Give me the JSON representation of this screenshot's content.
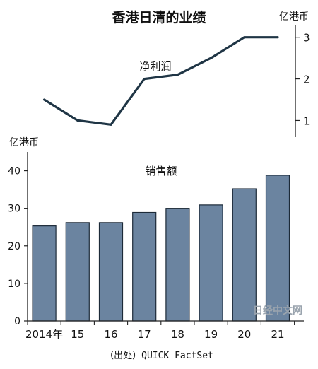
{
  "chart_data": [
    {
      "type": "line",
      "title": "香港日清的业绩",
      "series_label": "净利润",
      "unit": "亿港币",
      "x": [
        "2014年",
        "15",
        "16",
        "17",
        "18",
        "19",
        "20",
        "21"
      ],
      "values": [
        1.5,
        1.0,
        0.9,
        2.0,
        2.1,
        2.5,
        3.0,
        3.0
      ],
      "yticks": [
        1,
        2,
        3
      ],
      "ylim": [
        0.6,
        3.3
      ],
      "axis_side": "right",
      "color": "#1f3545"
    },
    {
      "type": "bar",
      "title": "销售额",
      "unit": "亿港币",
      "categories": [
        "2014年",
        "15",
        "16",
        "17",
        "18",
        "19",
        "20",
        "21"
      ],
      "values": [
        25.3,
        26.2,
        26.2,
        28.9,
        30.0,
        30.9,
        35.2,
        38.8
      ],
      "yticks": [
        0,
        10,
        20,
        30,
        40
      ],
      "ylim": [
        0,
        45
      ],
      "grid": false,
      "axis_side": "left",
      "bar_color": "#6b84a0",
      "bar_edge_color": "#1c2a38"
    }
  ],
  "source_note": "（出处）QUICK FactSet",
  "watermark": "日经中文网"
}
